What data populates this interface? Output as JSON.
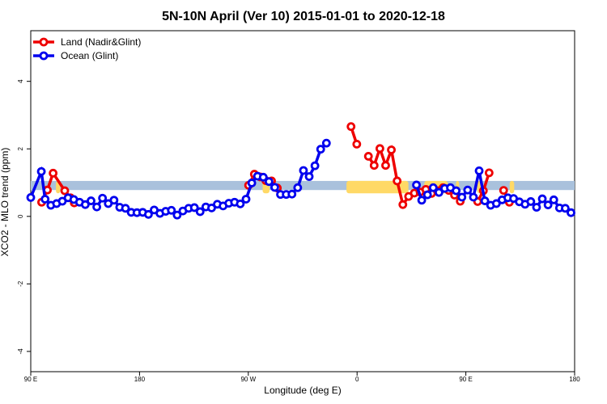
{
  "chart_data": {
    "type": "line",
    "title": "5N-10N April (Ver 10)   2015-01-01 to 2020-12-18",
    "xlabel": "Longitude (deg E)",
    "ylabel": "XCO2 - MLO trend (ppm)",
    "xlim": [
      90,
      450
    ],
    "ylim": [
      -4.6,
      5.5
    ],
    "x_ticks": [
      {
        "value": 90,
        "label": "90 E"
      },
      {
        "value": 162,
        "label": "180"
      },
      {
        "value": 234,
        "label": "90 W"
      },
      {
        "value": 306,
        "label": "0"
      },
      {
        "value": 378,
        "label": "90 E"
      },
      {
        "value": 450,
        "label": "180"
      }
    ],
    "y_ticks": [
      -4,
      -2,
      0,
      2,
      4
    ],
    "legend_position": "top-left",
    "band": {
      "y_min": 0.78,
      "y_max": 1.05,
      "color": "#a9c1dc"
    },
    "land_yellow_patches": [
      {
        "x_start": 106.7,
        "x_end": 109.5
      },
      {
        "x_start": 243.5,
        "x_end": 248.0
      },
      {
        "x_start": 299.0,
        "x_end": 340.0
      },
      {
        "x_start": 350.5,
        "x_end": 366.0
      },
      {
        "x_start": 371.5,
        "x_end": 373.5
      },
      {
        "x_start": 385.5,
        "x_end": 389.0
      },
      {
        "x_start": 407.0,
        "x_end": 410.0
      }
    ],
    "series": [
      {
        "name": "Land (Nadir&Glint)",
        "color": "#ee0000",
        "segments": [
          [
            [
              97.2,
              0.42
            ],
            [
              101.0,
              0.78
            ],
            [
              104.8,
              1.28
            ],
            [
              112.5,
              0.76
            ],
            [
              116.3,
              0.55
            ],
            [
              118.8,
              0.4
            ]
          ],
          [
            [
              234.2,
              0.92
            ],
            [
              238.0,
              1.25
            ],
            [
              241.8,
              1.17
            ],
            [
              245.6,
              1.06
            ],
            [
              249.4,
              1.05
            ],
            [
              253.2,
              0.84
            ]
          ],
          [
            [
              302.0,
              2.66
            ],
            [
              305.8,
              2.14
            ]
          ],
          [
            [
              313.5,
              1.78
            ],
            [
              317.3,
              1.51
            ],
            [
              321.1,
              2.01
            ],
            [
              324.9,
              1.51
            ],
            [
              328.7,
              1.97
            ],
            [
              332.5,
              1.05
            ],
            [
              336.3,
              0.35
            ],
            [
              340.1,
              0.59
            ],
            [
              343.9,
              0.69
            ],
            [
              347.7,
              0.72
            ],
            [
              351.5,
              0.8
            ],
            [
              355.3,
              0.68
            ],
            [
              359.1,
              0.76
            ],
            [
              362.9,
              0.85
            ],
            [
              366.7,
              0.77
            ],
            [
              370.5,
              0.63
            ],
            [
              374.3,
              0.45
            ]
          ],
          [
            [
              385.8,
              0.44
            ],
            [
              389.6,
              0.76
            ],
            [
              393.4,
              1.29
            ]
          ],
          [
            [
              403.0,
              0.77
            ],
            [
              406.8,
              0.42
            ]
          ]
        ]
      },
      {
        "name": "Ocean (Glint)",
        "color": "#0000ee",
        "segments": [
          [
            [
              90.0,
              0.56
            ],
            [
              97.0,
              1.33
            ],
            [
              99.5,
              0.51
            ],
            [
              103.3,
              0.33
            ],
            [
              107.1,
              0.38
            ],
            [
              110.9,
              0.45
            ],
            [
              114.7,
              0.55
            ],
            [
              118.5,
              0.5
            ],
            [
              122.3,
              0.42
            ],
            [
              126.1,
              0.35
            ],
            [
              129.9,
              0.46
            ],
            [
              133.7,
              0.28
            ],
            [
              137.5,
              0.54
            ],
            [
              141.3,
              0.38
            ],
            [
              145.1,
              0.48
            ],
            [
              148.9,
              0.27
            ],
            [
              152.7,
              0.24
            ],
            [
              156.5,
              0.12
            ],
            [
              160.3,
              0.11
            ],
            [
              164.1,
              0.12
            ],
            [
              167.9,
              0.06
            ],
            [
              171.7,
              0.19
            ],
            [
              175.5,
              0.09
            ],
            [
              179.3,
              0.15
            ],
            [
              183.1,
              0.18
            ],
            [
              186.9,
              0.04
            ],
            [
              190.7,
              0.16
            ],
            [
              194.5,
              0.24
            ],
            [
              198.3,
              0.26
            ],
            [
              202.1,
              0.14
            ],
            [
              205.9,
              0.28
            ],
            [
              209.7,
              0.25
            ],
            [
              213.5,
              0.36
            ],
            [
              217.3,
              0.31
            ],
            [
              221.1,
              0.39
            ],
            [
              224.9,
              0.42
            ],
            [
              228.7,
              0.37
            ],
            [
              232.5,
              0.51
            ],
            [
              236.3,
              0.99
            ],
            [
              240.1,
              1.19
            ],
            [
              243.9,
              1.16
            ],
            [
              247.7,
              1.03
            ],
            [
              251.5,
              0.86
            ],
            [
              255.3,
              0.65
            ],
            [
              259.1,
              0.65
            ],
            [
              262.9,
              0.66
            ],
            [
              266.7,
              0.85
            ],
            [
              270.5,
              1.36
            ],
            [
              274.3,
              1.18
            ],
            [
              278.1,
              1.5
            ],
            [
              281.9,
              1.99
            ],
            [
              285.7,
              2.17
            ]
          ],
          [
            [
              345.3,
              0.93
            ],
            [
              348.8,
              0.48
            ],
            [
              352.6,
              0.64
            ],
            [
              356.4,
              0.85
            ],
            [
              360.2,
              0.71
            ],
            [
              364.0,
              0.83
            ],
            [
              367.8,
              0.85
            ],
            [
              371.6,
              0.76
            ],
            [
              375.4,
              0.57
            ],
            [
              379.2,
              0.78
            ],
            [
              383.0,
              0.57
            ],
            [
              386.8,
              1.35
            ],
            [
              390.6,
              0.46
            ],
            [
              394.4,
              0.33
            ],
            [
              398.2,
              0.38
            ],
            [
              402.0,
              0.49
            ],
            [
              405.8,
              0.55
            ],
            [
              409.6,
              0.53
            ],
            [
              413.4,
              0.43
            ],
            [
              417.2,
              0.36
            ],
            [
              421.0,
              0.44
            ],
            [
              424.8,
              0.27
            ],
            [
              428.6,
              0.52
            ],
            [
              432.4,
              0.34
            ],
            [
              436.2,
              0.49
            ],
            [
              440.0,
              0.25
            ],
            [
              443.8,
              0.24
            ],
            [
              447.6,
              0.11
            ]
          ]
        ]
      }
    ]
  }
}
